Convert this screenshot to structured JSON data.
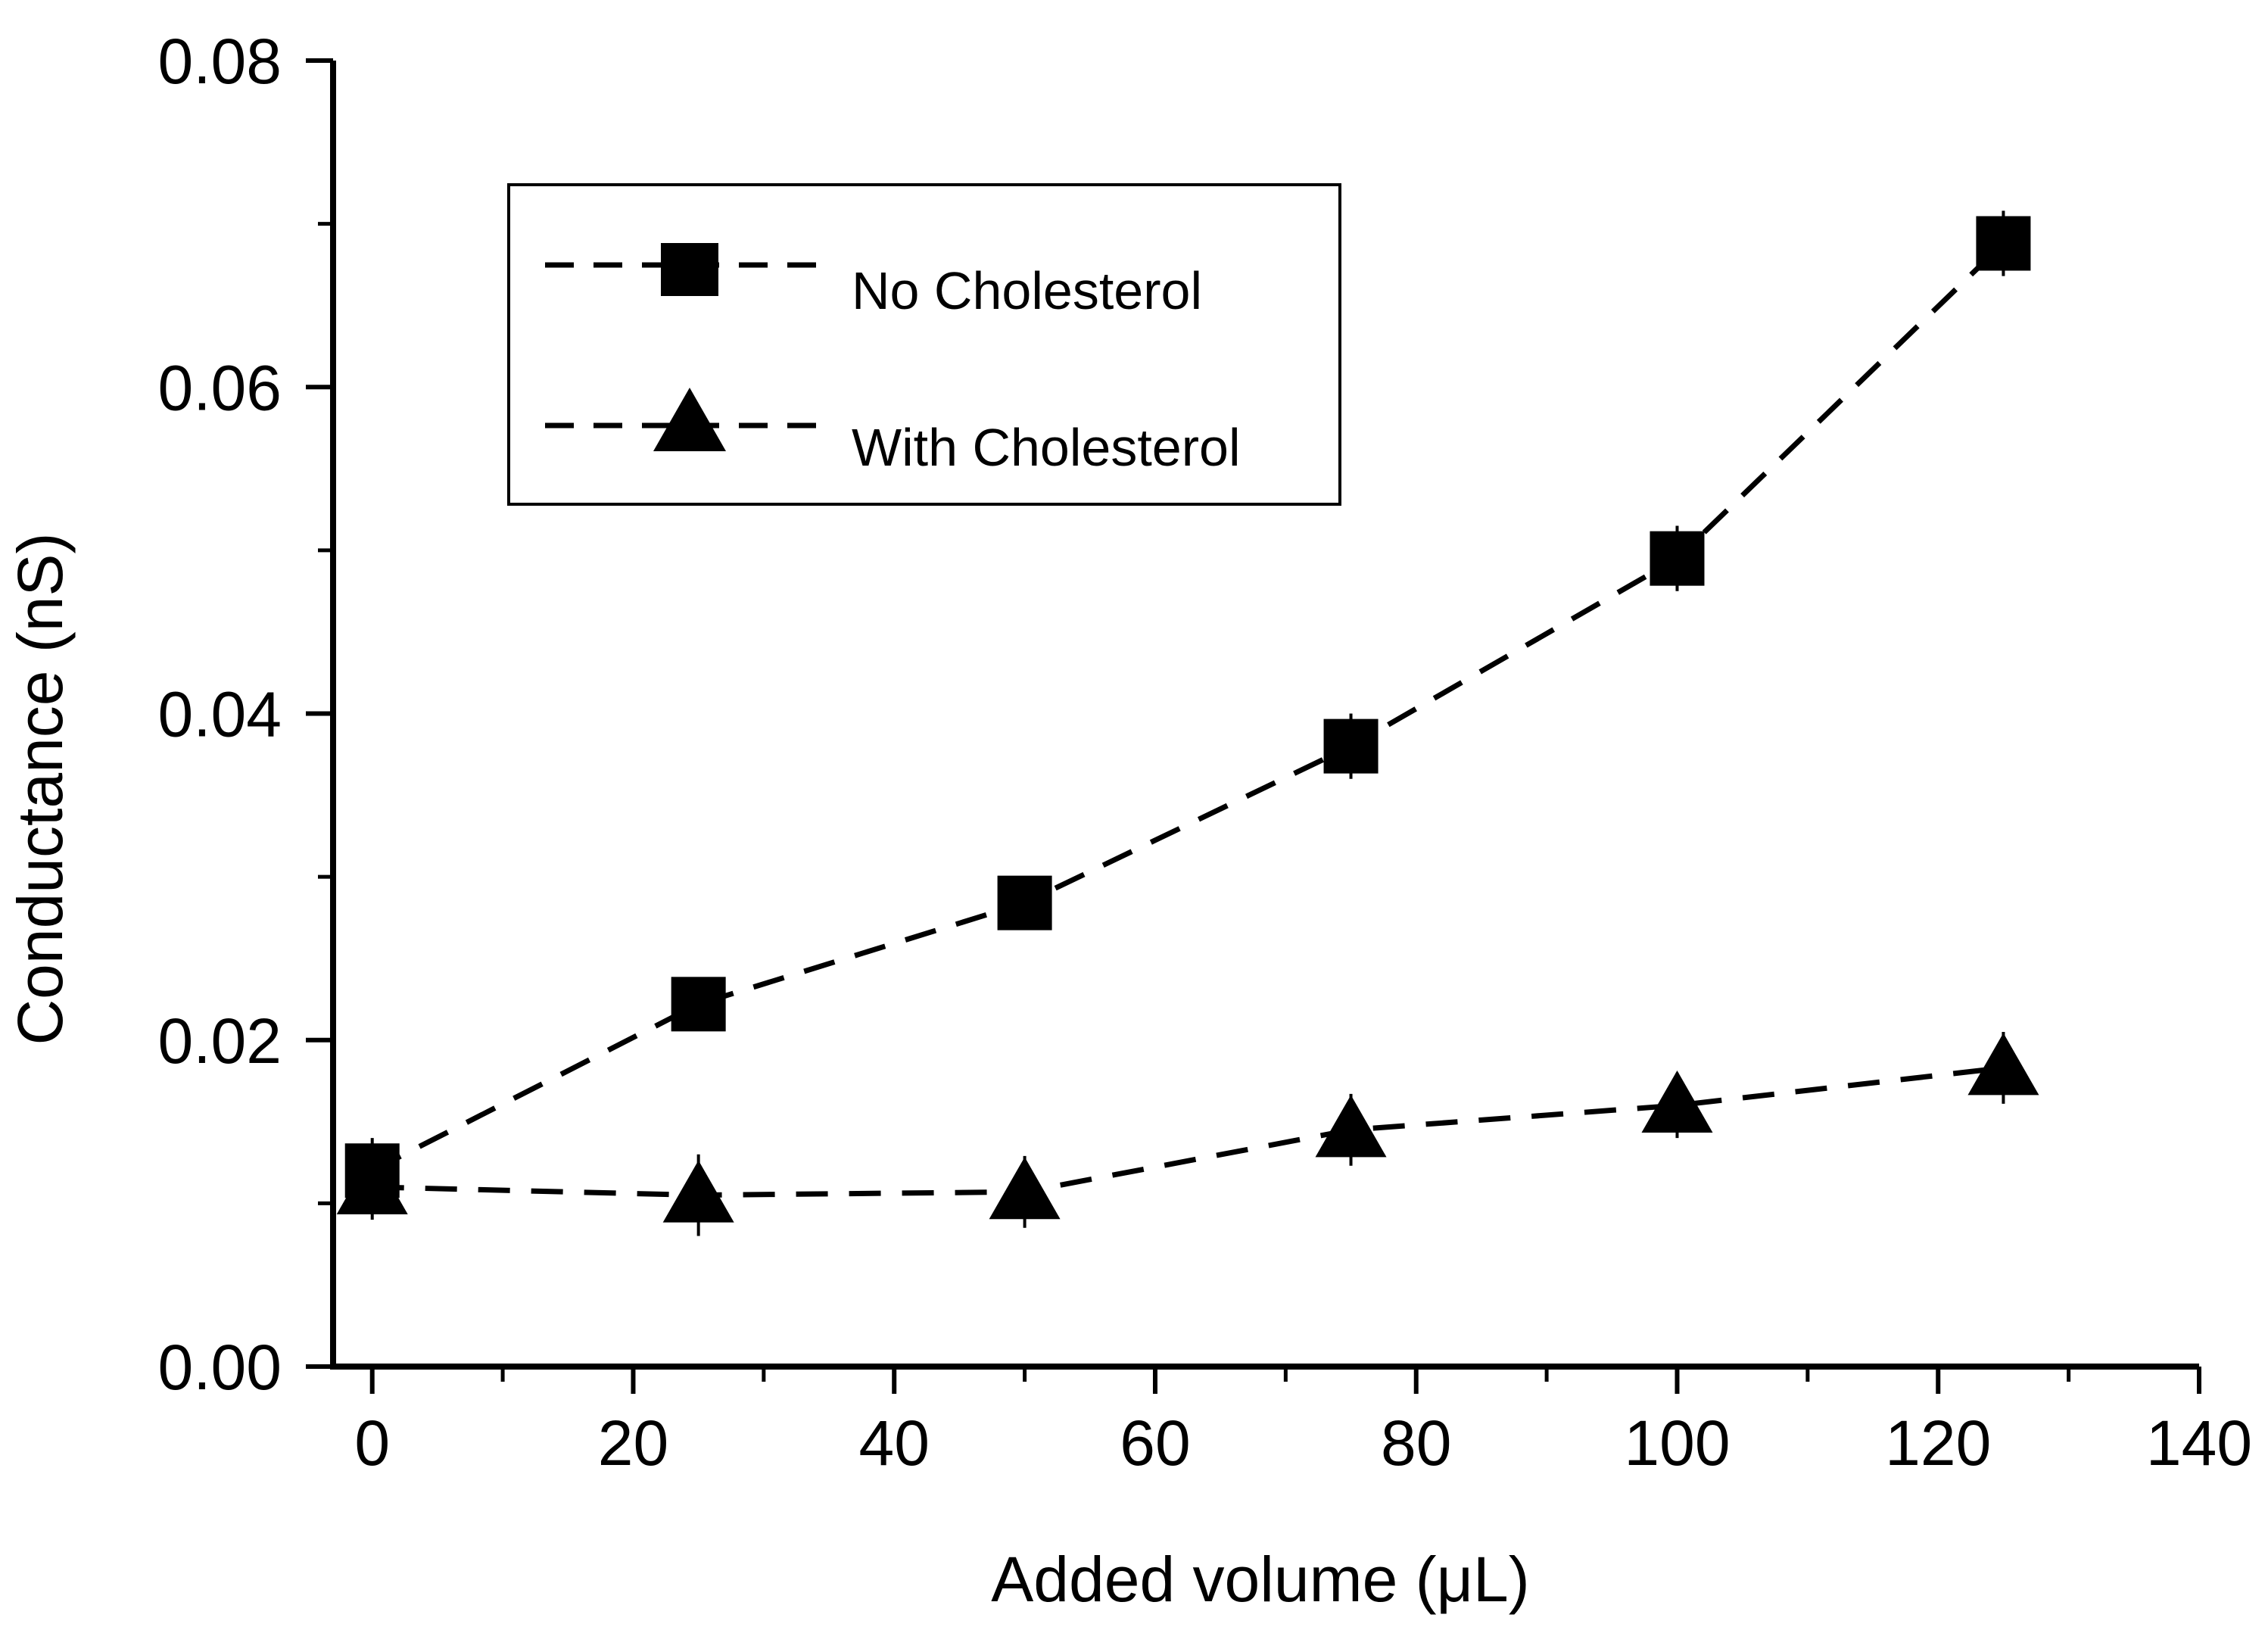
{
  "chart_data": {
    "type": "line",
    "title": "",
    "xlabel": "Added volume (μL)",
    "ylabel": "Conductance (nS)",
    "xlim": [
      -3,
      140
    ],
    "ylim": [
      0,
      0.08
    ],
    "x_ticks": [
      "0",
      "20",
      "40",
      "60",
      "80",
      "100",
      "120",
      "140"
    ],
    "y_ticks": [
      "0.00",
      "0.02",
      "0.04",
      "0.06",
      "0.08"
    ],
    "x_tick_values": [
      0,
      20,
      40,
      60,
      80,
      100,
      120,
      140
    ],
    "y_tick_values": [
      0,
      0.02,
      0.04,
      0.06,
      0.08
    ],
    "x_minor_tick_values": [
      10,
      30,
      50,
      70,
      90,
      110,
      130
    ],
    "y_minor_tick_values": [
      0.01,
      0.03,
      0.05,
      0.07
    ],
    "grid": false,
    "legend_position": "top-left",
    "series": [
      {
        "name": "No Cholesterol",
        "marker": "square",
        "line_style": "dashed",
        "x": [
          0,
          25,
          50,
          75,
          100,
          125
        ],
        "y": [
          0.012,
          0.0222,
          0.0284,
          0.038,
          0.0495,
          0.0688
        ],
        "error": [
          0.002,
          0.0015,
          0.0015,
          0.002,
          0.002,
          0.002
        ]
      },
      {
        "name": "With Cholesterol",
        "marker": "triangle",
        "line_style": "dashed",
        "x": [
          0,
          25,
          50,
          75,
          100,
          125
        ],
        "y": [
          0.011,
          0.0105,
          0.0107,
          0.0145,
          0.016,
          0.0183
        ],
        "error": [
          0.002,
          0.0025,
          0.0022,
          0.0022,
          0.002,
          0.0022
        ]
      }
    ]
  }
}
